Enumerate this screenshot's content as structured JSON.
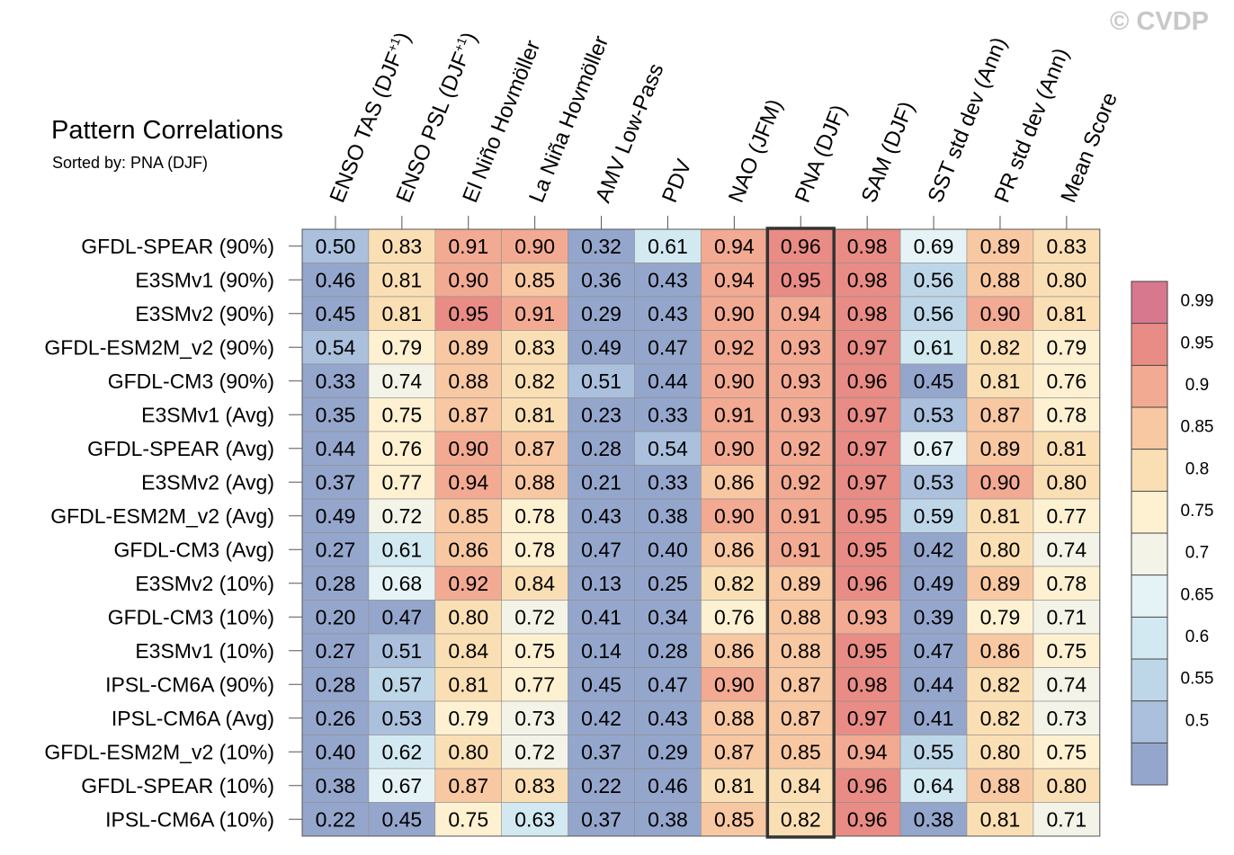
{
  "copyright": "© CVDP",
  "chart_data": {
    "type": "heatmap",
    "title": "Pattern Correlations",
    "subtitle": "Sorted by: PNA (DJF)",
    "highlight_column": "PNA (DJF)",
    "columns": [
      {
        "prefix": "ENSO TAS (DJF",
        "sup": "+1",
        "suffix": ")"
      },
      {
        "prefix": "ENSO PSL (DJF",
        "sup": "+1",
        "suffix": ")"
      },
      {
        "prefix": "El Niño Hovmöller",
        "sup": "",
        "suffix": ""
      },
      {
        "prefix": "La Niña Hovmöller",
        "sup": "",
        "suffix": ""
      },
      {
        "prefix": "AMV Low-Pass",
        "sup": "",
        "suffix": ""
      },
      {
        "prefix": "PDV",
        "sup": "",
        "suffix": ""
      },
      {
        "prefix": "NAO (JFM)",
        "sup": "",
        "suffix": ""
      },
      {
        "prefix": "PNA (DJF)",
        "sup": "",
        "suffix": ""
      },
      {
        "prefix": "SAM (DJF)",
        "sup": "",
        "suffix": ""
      },
      {
        "prefix": "SST std dev (Ann)",
        "sup": "",
        "suffix": ""
      },
      {
        "prefix": "PR std dev (Ann)",
        "sup": "",
        "suffix": ""
      },
      {
        "prefix": "Mean Score",
        "sup": "",
        "suffix": ""
      }
    ],
    "rows": [
      {
        "name": "GFDL-SPEAR (90%)",
        "values": [
          "0.50",
          "0.83",
          "0.91",
          "0.90",
          "0.32",
          "0.61",
          "0.94",
          "0.96",
          "0.98",
          "0.69",
          "0.89",
          "0.83"
        ]
      },
      {
        "name": "E3SMv1 (90%)",
        "values": [
          "0.46",
          "0.81",
          "0.90",
          "0.85",
          "0.36",
          "0.43",
          "0.94",
          "0.95",
          "0.98",
          "0.56",
          "0.88",
          "0.80"
        ]
      },
      {
        "name": "E3SMv2 (90%)",
        "values": [
          "0.45",
          "0.81",
          "0.95",
          "0.91",
          "0.29",
          "0.43",
          "0.90",
          "0.94",
          "0.98",
          "0.56",
          "0.90",
          "0.81"
        ]
      },
      {
        "name": "GFDL-ESM2M_v2 (90%)",
        "values": [
          "0.54",
          "0.79",
          "0.89",
          "0.83",
          "0.49",
          "0.47",
          "0.92",
          "0.93",
          "0.97",
          "0.61",
          "0.82",
          "0.79"
        ]
      },
      {
        "name": "GFDL-CM3 (90%)",
        "values": [
          "0.33",
          "0.74",
          "0.88",
          "0.82",
          "0.51",
          "0.44",
          "0.90",
          "0.93",
          "0.96",
          "0.45",
          "0.81",
          "0.76"
        ]
      },
      {
        "name": "E3SMv1 (Avg)",
        "values": [
          "0.35",
          "0.75",
          "0.87",
          "0.81",
          "0.23",
          "0.33",
          "0.91",
          "0.93",
          "0.97",
          "0.53",
          "0.87",
          "0.78"
        ]
      },
      {
        "name": "GFDL-SPEAR (Avg)",
        "values": [
          "0.44",
          "0.76",
          "0.90",
          "0.87",
          "0.28",
          "0.54",
          "0.90",
          "0.92",
          "0.97",
          "0.67",
          "0.89",
          "0.81"
        ]
      },
      {
        "name": "E3SMv2 (Avg)",
        "values": [
          "0.37",
          "0.77",
          "0.94",
          "0.88",
          "0.21",
          "0.33",
          "0.86",
          "0.92",
          "0.97",
          "0.53",
          "0.90",
          "0.80"
        ]
      },
      {
        "name": "GFDL-ESM2M_v2 (Avg)",
        "values": [
          "0.49",
          "0.72",
          "0.85",
          "0.78",
          "0.43",
          "0.38",
          "0.90",
          "0.91",
          "0.95",
          "0.59",
          "0.81",
          "0.77"
        ]
      },
      {
        "name": "GFDL-CM3 (Avg)",
        "values": [
          "0.27",
          "0.61",
          "0.86",
          "0.78",
          "0.47",
          "0.40",
          "0.86",
          "0.91",
          "0.95",
          "0.42",
          "0.80",
          "0.74"
        ]
      },
      {
        "name": "E3SMv2 (10%)",
        "values": [
          "0.28",
          "0.68",
          "0.92",
          "0.84",
          "0.13",
          "0.25",
          "0.82",
          "0.89",
          "0.96",
          "0.49",
          "0.89",
          "0.78"
        ]
      },
      {
        "name": "GFDL-CM3 (10%)",
        "values": [
          "0.20",
          "0.47",
          "0.80",
          "0.72",
          "0.41",
          "0.34",
          "0.76",
          "0.88",
          "0.93",
          "0.39",
          "0.79",
          "0.71"
        ]
      },
      {
        "name": "E3SMv1 (10%)",
        "values": [
          "0.27",
          "0.51",
          "0.84",
          "0.75",
          "0.14",
          "0.28",
          "0.86",
          "0.88",
          "0.95",
          "0.47",
          "0.86",
          "0.75"
        ]
      },
      {
        "name": "IPSL-CM6A (90%)",
        "values": [
          "0.28",
          "0.57",
          "0.81",
          "0.77",
          "0.45",
          "0.47",
          "0.90",
          "0.87",
          "0.98",
          "0.44",
          "0.82",
          "0.74"
        ]
      },
      {
        "name": "IPSL-CM6A (Avg)",
        "values": [
          "0.26",
          "0.53",
          "0.79",
          "0.73",
          "0.42",
          "0.43",
          "0.88",
          "0.87",
          "0.97",
          "0.41",
          "0.82",
          "0.73"
        ]
      },
      {
        "name": "GFDL-ESM2M_v2 (10%)",
        "values": [
          "0.40",
          "0.62",
          "0.80",
          "0.72",
          "0.37",
          "0.29",
          "0.87",
          "0.85",
          "0.94",
          "0.55",
          "0.80",
          "0.75"
        ]
      },
      {
        "name": "GFDL-SPEAR (10%)",
        "values": [
          "0.38",
          "0.67",
          "0.87",
          "0.83",
          "0.22",
          "0.46",
          "0.81",
          "0.84",
          "0.96",
          "0.64",
          "0.88",
          "0.80"
        ]
      },
      {
        "name": "IPSL-CM6A (10%)",
        "values": [
          "0.22",
          "0.45",
          "0.75",
          "0.63",
          "0.37",
          "0.38",
          "0.85",
          "0.82",
          "0.96",
          "0.38",
          "0.81",
          "0.71"
        ]
      }
    ],
    "colorbar": {
      "levels": [
        0.5,
        0.55,
        0.6,
        0.65,
        0.7,
        0.75,
        0.8,
        0.85,
        0.9,
        0.95,
        0.99
      ],
      "labels": [
        "0.99",
        "0.95",
        "0.9",
        "0.85",
        "0.8",
        "0.75",
        "0.7",
        "0.65",
        "0.6",
        "0.55",
        "0.5"
      ],
      "colors": [
        "#95a6cc",
        "#aac0dd",
        "#bed7e8",
        "#d3e9f1",
        "#e6f3f6",
        "#f3f3e8",
        "#fdf1d2",
        "#fbdfb4",
        "#f8c8a3",
        "#f2aa93",
        "#e88c85",
        "#d8788e"
      ]
    }
  }
}
